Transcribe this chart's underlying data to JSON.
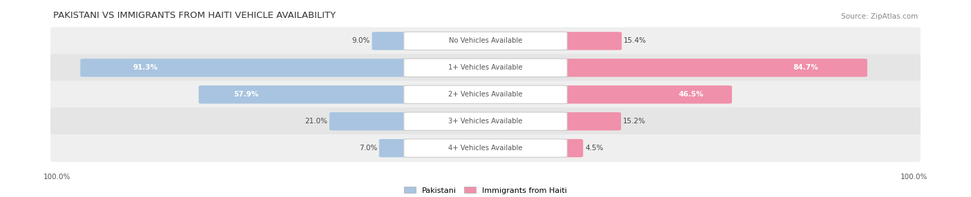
{
  "title": "PAKISTANI VS IMMIGRANTS FROM HAITI VEHICLE AVAILABILITY",
  "source": "Source: ZipAtlas.com",
  "categories": [
    "No Vehicles Available",
    "1+ Vehicles Available",
    "2+ Vehicles Available",
    "3+ Vehicles Available",
    "4+ Vehicles Available"
  ],
  "pakistani": [
    9.0,
    91.3,
    57.9,
    21.0,
    7.0
  ],
  "haiti": [
    15.4,
    84.7,
    46.5,
    15.2,
    4.5
  ],
  "pakistani_color": "#A8C4E0",
  "haiti_color": "#F090AA",
  "row_bg_even": "#EFEFEF",
  "row_bg_odd": "#E5E5E5",
  "footer_label": "100.0%",
  "legend_pakistani": "Pakistani",
  "legend_haiti": "Immigrants from Haiti",
  "fig_width": 14.06,
  "fig_height": 2.86
}
